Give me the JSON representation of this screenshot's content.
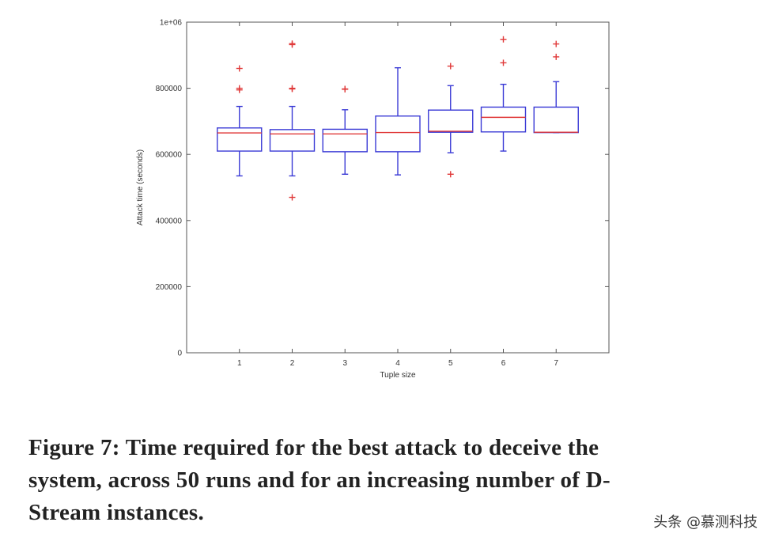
{
  "chart_data": {
    "type": "box",
    "xlabel": "Tuple size",
    "ylabel": "Attack time (seconds)",
    "ylim": [
      0,
      1000000
    ],
    "xlim": [
      0,
      8
    ],
    "y_ticks": [
      0,
      200000,
      400000,
      600000,
      800000
    ],
    "y_tick_labels": [
      "0",
      "200000",
      "400000",
      "600000",
      "800000"
    ],
    "y_exponent_label": "1e+06",
    "categories": [
      "1",
      "2",
      "3",
      "4",
      "5",
      "6",
      "7"
    ],
    "colors": {
      "box": "#3b3bd6",
      "median": "#e03a3a",
      "outlier": "#e03a3a"
    },
    "boxes": [
      {
        "x": 1,
        "whisker_low": 535000,
        "q1": 610000,
        "median": 665000,
        "q3": 680000,
        "whisker_high": 745000,
        "outliers": [
          800000,
          795000,
          860000
        ]
      },
      {
        "x": 2,
        "whisker_low": 535000,
        "q1": 610000,
        "median": 662000,
        "q3": 675000,
        "whisker_high": 745000,
        "outliers": [
          470000,
          800000,
          798000,
          932000,
          935000
        ]
      },
      {
        "x": 3,
        "whisker_low": 540000,
        "q1": 608000,
        "median": 662000,
        "q3": 676000,
        "whisker_high": 735000,
        "outliers": [
          798000,
          797000
        ]
      },
      {
        "x": 4,
        "whisker_low": 538000,
        "q1": 608000,
        "median": 666000,
        "q3": 716000,
        "whisker_high": 862000,
        "outliers": []
      },
      {
        "x": 5,
        "whisker_low": 605000,
        "q1": 667000,
        "median": 670000,
        "q3": 734000,
        "whisker_high": 808000,
        "outliers": [
          540000,
          867000
        ]
      },
      {
        "x": 6,
        "whisker_low": 610000,
        "q1": 668000,
        "median": 712000,
        "q3": 743000,
        "whisker_high": 812000,
        "outliers": [
          877000,
          948000
        ]
      },
      {
        "x": 7,
        "whisker_low": 666000,
        "q1": 666000,
        "median": 667000,
        "q3": 743000,
        "whisker_high": 820000,
        "outliers": [
          895000,
          934000
        ]
      }
    ],
    "grid": false
  },
  "caption": {
    "line1": "Figure 7: Time required for the best attack to deceive the",
    "line2": "system, across 50 runs and for an increasing number of D-",
    "line3": "Stream instances."
  },
  "watermark": "头条 @慕测科技"
}
